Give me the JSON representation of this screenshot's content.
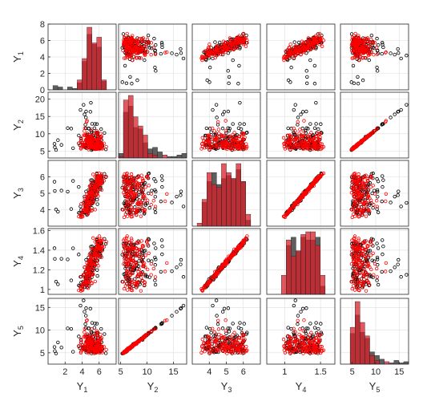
{
  "chart_data": {
    "type": "scatter",
    "matrix": "scatterplot-matrix",
    "variables": [
      {
        "base": "Y",
        "sub": "1",
        "min": 0,
        "max": 8,
        "ticks": [
          "0",
          "2",
          "4",
          "6",
          "8"
        ],
        "tickValues": [
          0,
          2,
          4,
          6,
          8
        ]
      },
      {
        "base": "Y",
        "sub": "2",
        "min": 3,
        "max": 22,
        "ticks": [
          "5",
          "10",
          "15",
          "20"
        ],
        "tickValues": [
          5,
          10,
          15,
          20
        ]
      },
      {
        "base": "Y",
        "sub": "3",
        "min": 3.0,
        "max": 7.0,
        "ticks": [
          "4",
          "5",
          "6"
        ],
        "tickValues": [
          4,
          5,
          6
        ]
      },
      {
        "base": "Y",
        "sub": "4",
        "min": 0.95,
        "max": 1.62,
        "ticks": [
          "1",
          "1.2",
          "1.4",
          "1.6"
        ],
        "tickValues": [
          1,
          1.2,
          1.4,
          1.6
        ]
      },
      {
        "base": "Y",
        "sub": "5",
        "min": 2.5,
        "max": 17.0,
        "ticks": [
          "5",
          "10",
          "15"
        ],
        "tickValues": [
          5,
          10,
          15
        ]
      }
    ],
    "x_axis_ticks": [
      {
        "labels": [
          "2",
          "4",
          "6"
        ],
        "values": [
          2,
          4,
          6
        ],
        "min": 0,
        "max": 8
      },
      {
        "labels": [
          "5",
          "10",
          "15"
        ],
        "values": [
          5,
          10,
          15
        ],
        "min": 4.6,
        "max": 17.5
      },
      {
        "labels": [
          "4",
          "5",
          "6"
        ],
        "values": [
          4,
          5,
          6
        ],
        "min": 3.0,
        "max": 7.0
      },
      {
        "labels": [
          "1",
          "1.5"
        ],
        "values": [
          1,
          1.5
        ],
        "min": 0.75,
        "max": 1.7
      },
      {
        "labels": [
          "5",
          "10",
          "15"
        ],
        "values": [
          5,
          10,
          15
        ],
        "min": 2.5,
        "max": 17.0
      }
    ],
    "series": [
      {
        "group": "black",
        "color": "#000000"
      },
      {
        "group": "red",
        "color": "#ff0000"
      }
    ],
    "colors": {
      "black_hist": "#555555",
      "red_hist": "#d9202a",
      "red_hist_light": "#e8555d",
      "grid": "#dddddd",
      "axis": "#262626"
    },
    "grid": true
  }
}
